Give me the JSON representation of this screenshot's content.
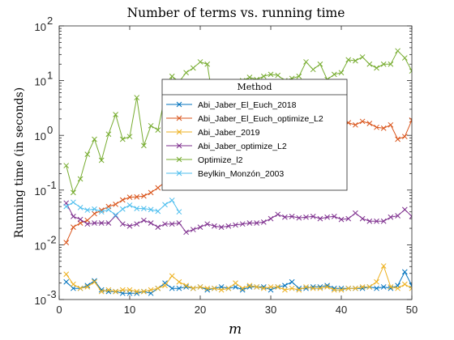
{
  "chart_data": {
    "type": "line",
    "title": "Number of terms vs. running time",
    "xlabel": "m",
    "ylabel": "Running time (in seconds)",
    "xlim": [
      0,
      50
    ],
    "ylim": [
      0.001,
      100
    ],
    "yscale": "log",
    "grid": false,
    "x_ticks": [
      0,
      10,
      20,
      30,
      40,
      50
    ],
    "y_ticks": [
      {
        "value": 0.001,
        "base": "10",
        "exp": "-3"
      },
      {
        "value": 0.01,
        "base": "10",
        "exp": "-2"
      },
      {
        "value": 0.1,
        "base": "10",
        "exp": "-1"
      },
      {
        "value": 1,
        "base": "10",
        "exp": "0"
      },
      {
        "value": 10,
        "base": "10",
        "exp": "1"
      },
      {
        "value": 100,
        "base": "10",
        "exp": "2"
      }
    ],
    "legend": {
      "title": "Method",
      "placement": "center"
    },
    "series": [
      {
        "name": "Abi_Jaber_El_Euch_2018",
        "color": "#0072BD",
        "x": [
          1,
          2,
          3,
          4,
          5,
          6,
          7,
          8,
          9,
          10,
          11,
          12,
          13,
          14,
          15,
          16,
          17,
          18,
          19,
          20,
          21,
          22,
          23,
          24,
          25,
          26,
          27,
          28,
          29,
          30,
          31,
          32,
          33,
          34,
          35,
          36,
          37,
          38,
          39,
          40,
          41,
          42,
          43,
          44,
          45,
          46,
          47,
          48,
          49,
          50
        ],
        "y": [
          0.0021,
          0.0016,
          0.0016,
          0.0018,
          0.0022,
          0.0015,
          0.0014,
          0.0014,
          0.0013,
          0.0013,
          0.0013,
          0.0014,
          0.0013,
          0.0016,
          0.002,
          0.0016,
          0.0016,
          0.0017,
          0.0016,
          0.0017,
          0.0015,
          0.0016,
          0.0017,
          0.0016,
          0.0017,
          0.0015,
          0.0017,
          0.0017,
          0.0017,
          0.0015,
          0.0017,
          0.0018,
          0.0021,
          0.0016,
          0.0016,
          0.0017,
          0.0017,
          0.0018,
          0.0016,
          0.0016,
          0.0016,
          0.0016,
          0.0016,
          0.0017,
          0.0016,
          0.0017,
          0.0016,
          0.0018,
          0.0032,
          0.0018
        ]
      },
      {
        "name": "Abi_Jaber_El_Euch_optimize_L2",
        "color": "#D95319",
        "x": [
          1,
          2,
          3,
          4,
          5,
          6,
          7,
          8,
          9,
          10,
          11,
          12,
          13,
          14,
          15,
          16,
          17,
          18,
          19,
          20,
          21,
          22,
          23,
          24,
          25,
          26,
          27,
          28,
          29,
          30,
          31,
          32,
          33,
          34,
          35,
          36,
          37,
          38,
          39,
          40,
          41,
          42,
          43,
          44,
          45,
          46,
          47,
          48,
          49,
          50
        ],
        "y": [
          0.011,
          0.021,
          0.025,
          0.028,
          0.037,
          0.043,
          0.05,
          0.055,
          0.066,
          0.074,
          0.075,
          0.078,
          0.09,
          0.11,
          0.14,
          0.17,
          0.2,
          0.24,
          0.28,
          0.32,
          0.38,
          0.45,
          0.5,
          0.55,
          0.62,
          0.68,
          0.74,
          0.8,
          0.86,
          0.92,
          0.98,
          1.05,
          1.1,
          1.18,
          1.25,
          1.3,
          1.4,
          1.45,
          1.55,
          1.6,
          1.7,
          1.55,
          1.8,
          1.65,
          1.4,
          1.35,
          1.55,
          0.85,
          0.95,
          1.9
        ]
      },
      {
        "name": "Abi_Jaber_2019",
        "color": "#EDB120",
        "x": [
          1,
          2,
          3,
          4,
          5,
          6,
          7,
          8,
          9,
          10,
          11,
          12,
          13,
          14,
          15,
          16,
          17,
          18,
          19,
          20,
          21,
          22,
          23,
          24,
          25,
          26,
          27,
          28,
          29,
          30,
          31,
          32,
          33,
          34,
          35,
          36,
          37,
          38,
          39,
          40,
          41,
          42,
          43,
          44,
          45,
          46,
          47,
          48,
          49,
          50
        ],
        "y": [
          0.0029,
          0.0019,
          0.0016,
          0.0017,
          0.0021,
          0.0014,
          0.0015,
          0.0014,
          0.0015,
          0.0015,
          0.0014,
          0.0014,
          0.0015,
          0.0016,
          0.0018,
          0.0027,
          0.0021,
          0.0018,
          0.0016,
          0.0017,
          0.0016,
          0.0016,
          0.0015,
          0.0016,
          0.002,
          0.0016,
          0.0018,
          0.0017,
          0.0016,
          0.0017,
          0.0017,
          0.0015,
          0.0016,
          0.0015,
          0.0017,
          0.0016,
          0.0016,
          0.0017,
          0.0015,
          0.0015,
          0.0016,
          0.0016,
          0.0017,
          0.0017,
          0.0021,
          0.0041,
          0.0017,
          0.0016,
          0.0019,
          0.0016
        ]
      },
      {
        "name": "Abi_Jaber_optimize_L2",
        "color": "#7E2F8E",
        "x": [
          1,
          2,
          3,
          4,
          5,
          6,
          7,
          8,
          9,
          10,
          11,
          12,
          13,
          14,
          15,
          16,
          17,
          18,
          19,
          20,
          21,
          22,
          23,
          24,
          25,
          26,
          27,
          28,
          29,
          30,
          31,
          32,
          33,
          34,
          35,
          36,
          37,
          38,
          39,
          40,
          41,
          42,
          43,
          44,
          45,
          46,
          47,
          48,
          49,
          50
        ],
        "y": [
          0.058,
          0.033,
          0.029,
          0.024,
          0.025,
          0.025,
          0.025,
          0.034,
          0.024,
          0.022,
          0.024,
          0.028,
          0.025,
          0.021,
          0.024,
          0.024,
          0.025,
          0.017,
          0.019,
          0.021,
          0.024,
          0.022,
          0.021,
          0.022,
          0.023,
          0.024,
          0.025,
          0.025,
          0.026,
          0.03,
          0.036,
          0.032,
          0.033,
          0.031,
          0.032,
          0.033,
          0.03,
          0.032,
          0.033,
          0.029,
          0.03,
          0.038,
          0.03,
          0.027,
          0.027,
          0.027,
          0.032,
          0.034,
          0.044,
          0.033
        ]
      },
      {
        "name": "Optimize_l2",
        "color": "#77AC30",
        "x": [
          1,
          2,
          3,
          4,
          5,
          6,
          7,
          8,
          9,
          10,
          11,
          12,
          13,
          14,
          15,
          16,
          17,
          18,
          19,
          20,
          21,
          22,
          23,
          24,
          25,
          26,
          27,
          28,
          29,
          30,
          31,
          32,
          33,
          34,
          35,
          36,
          37,
          38,
          39,
          40,
          41,
          42,
          43,
          44,
          45,
          46,
          47,
          48,
          49,
          50
        ],
        "y": [
          0.28,
          0.09,
          0.16,
          0.45,
          0.85,
          0.35,
          1.05,
          2.4,
          0.85,
          0.95,
          4.9,
          0.65,
          1.5,
          1.25,
          5.2,
          12.0,
          9.5,
          14.0,
          17.0,
          22.0,
          20.0,
          3.0,
          5.0,
          4.0,
          8.0,
          10.0,
          11.5,
          10.5,
          12.0,
          13.0,
          12.5,
          10.0,
          11.0,
          12.0,
          22.0,
          16.0,
          20.0,
          10.5,
          13.0,
          14.0,
          24.0,
          23.0,
          27.0,
          20.0,
          17.0,
          20.0,
          20.0,
          35.0,
          26.0,
          15.0
        ]
      },
      {
        "name": "Beylkin_Monzón_2003",
        "color": "#4DBEEE",
        "x": [
          1,
          2,
          3,
          4,
          5,
          6,
          7,
          8,
          9,
          10,
          11,
          12,
          13,
          14,
          15,
          16,
          17
        ],
        "y": [
          0.05,
          0.06,
          0.048,
          0.043,
          0.045,
          0.04,
          0.044,
          0.035,
          0.045,
          0.053,
          0.046,
          0.046,
          0.044,
          0.041,
          0.054,
          0.065,
          0.04
        ]
      }
    ]
  }
}
